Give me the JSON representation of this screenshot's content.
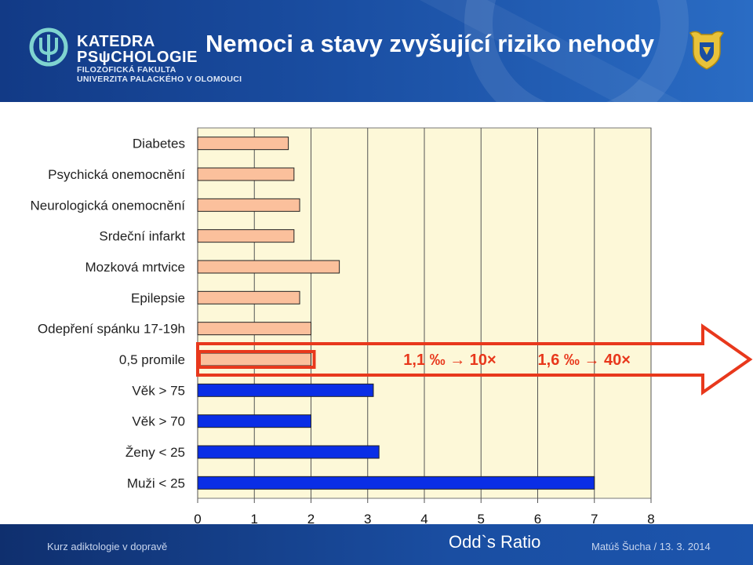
{
  "header": {
    "logo_line1": "KATEDRA",
    "logo_line2": "PSψCHOLOGIE",
    "logo_line3": "FILOZOFICKÁ FAKULTA",
    "logo_line4": "UNIVERZITA PALACKÉHO V OLOMOUCI",
    "title": "Nemoci a stavy zvyšující riziko nehody",
    "logo_icon": "psi-icon",
    "crest_icon": "university-crest-icon"
  },
  "chart_data": {
    "type": "bar",
    "orientation": "horizontal",
    "title": "",
    "xlabel": "Odd`s Ratio",
    "ylabel": "",
    "xlim": [
      0,
      8
    ],
    "xticks": [
      0,
      1,
      2,
      3,
      4,
      5,
      6,
      7,
      8
    ],
    "grid": true,
    "plot_background": "#fdf8d8",
    "categories": [
      "Diabetes",
      "Psychická onemocnění",
      "Neurologická onemocnění",
      "Srdeční infarkt",
      "Mozková mrtvice",
      "Epilepsie",
      "Odepření spánku 17-19h",
      "0,5 promile",
      "Věk > 75",
      "Věk > 70",
      "Ženy  < 25",
      "Muži < 25"
    ],
    "values": [
      1.6,
      1.7,
      1.8,
      1.7,
      2.5,
      1.8,
      2.0,
      2.0,
      3.1,
      2.0,
      3.2,
      7.0
    ],
    "colors": [
      "#fbc09c",
      "#fbc09c",
      "#fbc09c",
      "#fbc09c",
      "#fbc09c",
      "#fbc09c",
      "#fbc09c",
      "#fbc09c",
      "#0a2ee6",
      "#0a2ee6",
      "#0a2ee6",
      "#0a2ee6"
    ],
    "highlight_color": "#e8381c",
    "annotations": [
      {
        "category": "0,5 promile",
        "text": "1,1 ‰ ",
        "arrow": "→",
        "suffix": " 10×",
        "x": 4.45
      },
      {
        "category": "0,5 promile",
        "text": "1,6 ‰ ",
        "arrow": "→",
        "suffix": " 40×",
        "x": 6.82
      }
    ]
  },
  "footer": {
    "left": "Kurz adiktologie v dopravě",
    "right": "Matúš Šucha / 13. 3. 2014"
  }
}
